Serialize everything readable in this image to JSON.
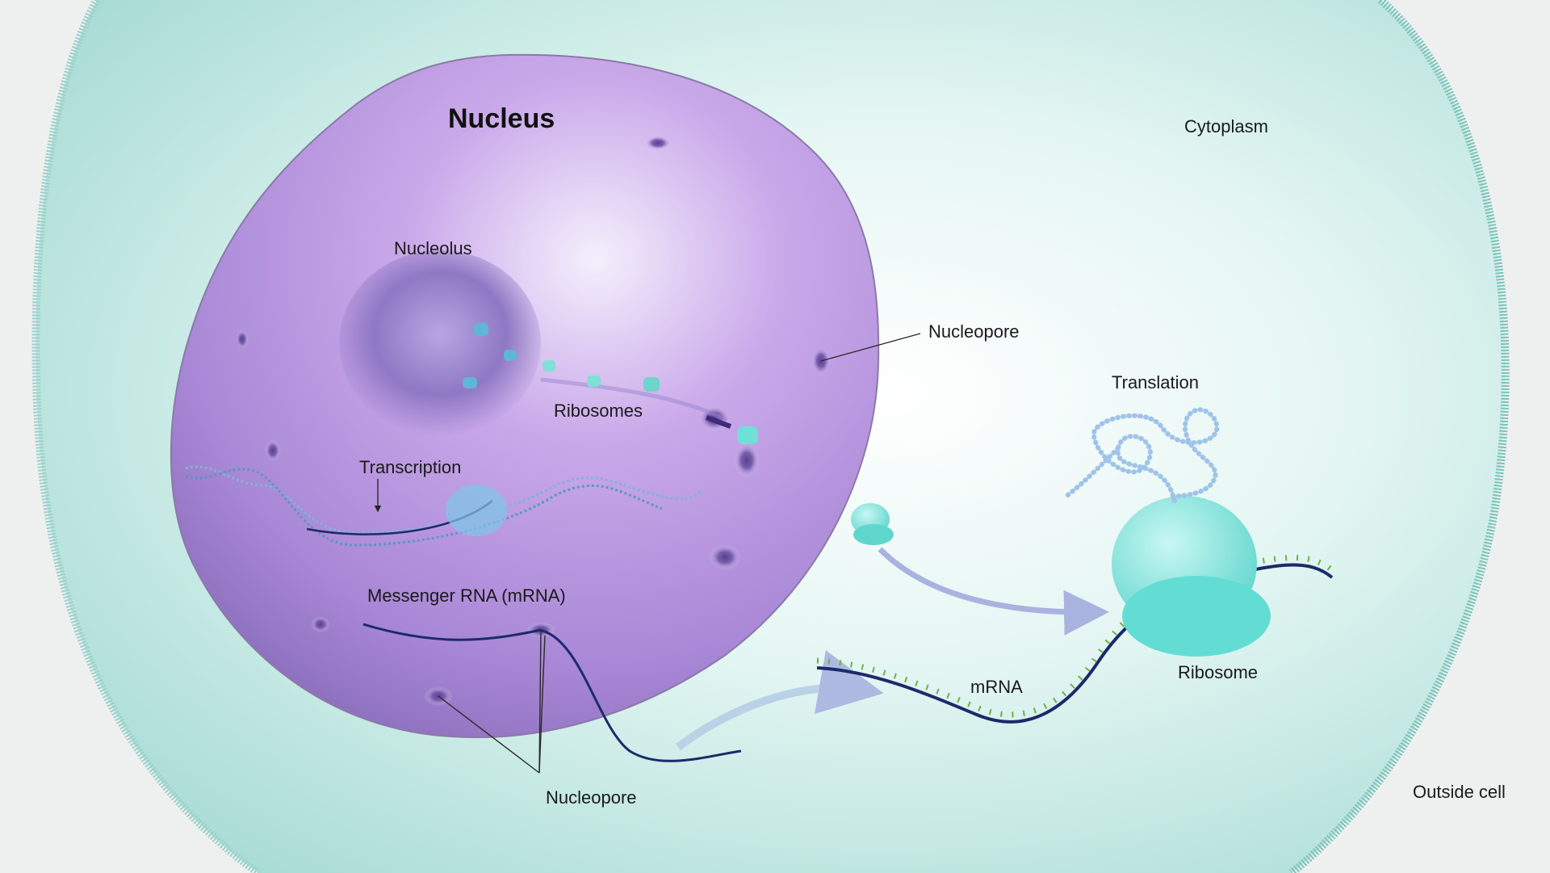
{
  "labels": {
    "nucleus": "Nucleus",
    "cytoplasm": "Cytoplasm",
    "nucleolus": "Nucleolus",
    "nucleopore_top": "Nucleopore",
    "translation": "Translation",
    "ribosomes": "Ribosomes",
    "transcription": "Transcription",
    "messenger_rna": "Messenger RNA (mRNA)",
    "mrna": "mRNA",
    "ribosome": "Ribosome",
    "nucleopore_bottom": "Nucleopore",
    "outside_cell": "Outside cell"
  },
  "colors": {
    "background": "#eef0f0",
    "cytoplasm": "#bfe6e2",
    "cell_membrane": "#8fcfc6",
    "nucleus": "#b79be0",
    "nucleolus": "#8e76c2",
    "ribosome": "#6fe0d8",
    "mrna_strand": "#1c2a6b",
    "arrow": "#a9b3e0"
  }
}
